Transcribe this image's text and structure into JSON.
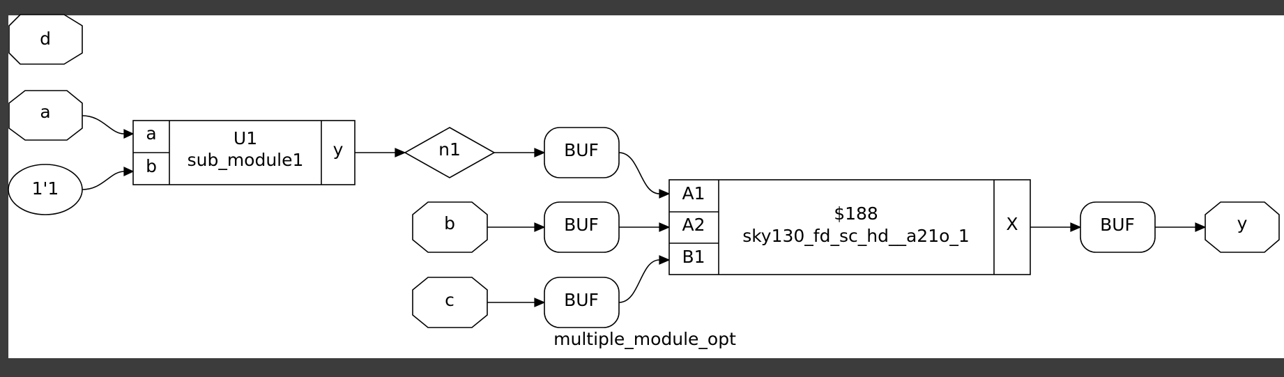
{
  "diagram": {
    "title": "multiple_module_opt",
    "inputs": {
      "d": "d",
      "a": "a",
      "const": "1'1",
      "b": "b",
      "c": "c"
    },
    "output": "y",
    "net": "n1",
    "u1": {
      "name": "U1",
      "type": "sub_module1",
      "pin_a": "a",
      "pin_b": "b",
      "pin_y": "y"
    },
    "gate": {
      "name": "$188",
      "type": "sky130_fd_sc_hd__a21o_1",
      "pin_a1": "A1",
      "pin_a2": "A2",
      "pin_b1": "B1",
      "pin_x": "X"
    },
    "buffers": {
      "buf1": "BUF",
      "buf2": "BUF",
      "buf3": "BUF",
      "buf4": "BUF"
    }
  }
}
